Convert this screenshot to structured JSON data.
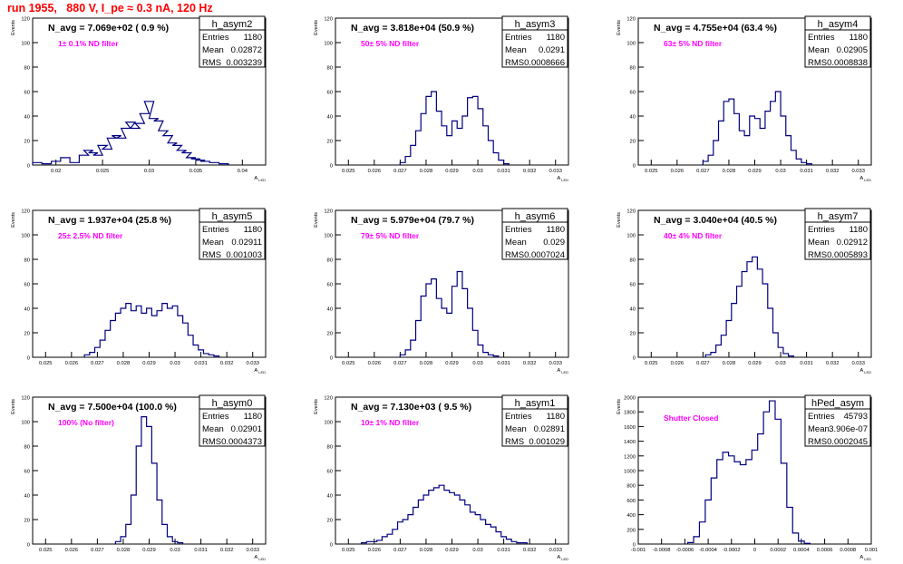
{
  "run_title": "run 1955,   880 V, I_pe ≈ 0.3 nA, 120 Hz",
  "colors": {
    "title": "#ff0000",
    "histogram": "#000080",
    "label": "#ff00ff",
    "frame": "#000000"
  },
  "chart_data": [
    {
      "type": "histogram",
      "hist_name": "h_asym2",
      "header": "N_avg = 7.069e+02 ( 0.9 %)",
      "label": "1± 0.1% ND filter",
      "stats": {
        "Entries": "1180",
        "Mean": "0.02872",
        "RMS": "0.003239"
      },
      "xlabel": "A_LED",
      "ylabel": "Events",
      "xlim": [
        0.0175,
        0.0425
      ],
      "ylim": [
        0,
        120
      ],
      "xticks": [
        0.02,
        0.025,
        0.03,
        0.035,
        0.04
      ],
      "xtick_labels": [
        "0.02",
        "0.025",
        "0.03",
        "0.035",
        "0.04"
      ],
      "yticks": [
        0,
        20,
        40,
        60,
        80,
        100,
        120
      ],
      "ytick_labels": [
        "0",
        "20",
        "40",
        "60",
        "80",
        "100",
        "120"
      ],
      "bin_centers": [
        0.018,
        0.019,
        0.02,
        0.021,
        0.022,
        0.023,
        0.0235,
        0.024,
        0.0245,
        0.025,
        0.0255,
        0.026,
        0.0265,
        0.027,
        0.0275,
        0.028,
        0.0285,
        0.029,
        0.0295,
        0.03,
        0.0305,
        0.031,
        0.0315,
        0.032,
        0.0325,
        0.033,
        0.0335,
        0.034,
        0.0345,
        0.035,
        0.0355,
        0.036,
        0.037,
        0.038
      ],
      "counts": [
        2,
        1,
        3,
        6,
        2,
        8,
        12,
        10,
        8,
        16,
        13,
        22,
        24,
        22,
        30,
        35,
        30,
        34,
        42,
        52,
        38,
        36,
        28,
        24,
        18,
        16,
        12,
        10,
        6,
        5,
        4,
        3,
        2,
        1
      ]
    },
    {
      "type": "histogram",
      "hist_name": "h_asym3",
      "header": "N_avg = 3.818e+04 (50.9 %)",
      "label": "50± 5% ND filter",
      "stats": {
        "Entries": "1180",
        "Mean": "0.0291",
        "RMS": "0.0008666"
      },
      "xlabel": "A_LED",
      "ylabel": "Events",
      "xlim": [
        0.0245,
        0.0335
      ],
      "ylim": [
        0,
        120
      ],
      "xticks": [
        0.025,
        0.026,
        0.027,
        0.028,
        0.029,
        0.03,
        0.031,
        0.032,
        0.033
      ],
      "xtick_labels": [
        "0.025",
        "0.026",
        "0.027",
        "0.028",
        "0.029",
        "0.03",
        "0.031",
        "0.032",
        "0.033"
      ],
      "yticks": [
        0,
        20,
        40,
        60,
        80,
        100,
        120
      ],
      "ytick_labels": [
        "0",
        "20",
        "40",
        "60",
        "80",
        "100",
        "120"
      ],
      "bin_centers": [
        0.0271,
        0.0273,
        0.0275,
        0.0277,
        0.0279,
        0.0281,
        0.0283,
        0.0285,
        0.0287,
        0.0289,
        0.0291,
        0.0293,
        0.0295,
        0.0297,
        0.0299,
        0.0301,
        0.0303,
        0.0305,
        0.0307,
        0.0309,
        0.0311
      ],
      "counts": [
        2,
        7,
        16,
        28,
        42,
        56,
        60,
        44,
        32,
        24,
        36,
        30,
        40,
        55,
        56,
        46,
        32,
        20,
        10,
        4,
        1
      ]
    },
    {
      "type": "histogram",
      "hist_name": "h_asym4",
      "header": "N_avg = 4.755e+04 (63.4 %)",
      "label": "63± 5% ND filter",
      "stats": {
        "Entries": "1180",
        "Mean": "0.02905",
        "RMS": "0.0008838"
      },
      "xlabel": "A_LED",
      "ylabel": "Events",
      "xlim": [
        0.0245,
        0.0335
      ],
      "ylim": [
        0,
        120
      ],
      "xticks": [
        0.025,
        0.026,
        0.027,
        0.028,
        0.029,
        0.03,
        0.031,
        0.032,
        0.033
      ],
      "xtick_labels": [
        "0.025",
        "0.026",
        "0.027",
        "0.028",
        "0.029",
        "0.03",
        "0.031",
        "0.032",
        "0.033"
      ],
      "yticks": [
        0,
        20,
        40,
        60,
        80,
        100,
        120
      ],
      "ytick_labels": [
        "0",
        "20",
        "40",
        "60",
        "80",
        "100",
        "120"
      ],
      "bin_centers": [
        0.0271,
        0.0273,
        0.0275,
        0.0277,
        0.0279,
        0.0281,
        0.0283,
        0.0285,
        0.0287,
        0.0289,
        0.0291,
        0.0293,
        0.0295,
        0.0297,
        0.0299,
        0.0301,
        0.0303,
        0.0305,
        0.0307,
        0.0309,
        0.0311
      ],
      "counts": [
        3,
        8,
        20,
        36,
        52,
        54,
        42,
        28,
        24,
        40,
        38,
        30,
        44,
        52,
        60,
        40,
        24,
        12,
        5,
        2,
        1
      ]
    },
    {
      "type": "histogram",
      "hist_name": "h_asym5",
      "header": "N_avg = 1.937e+04 (25.8 %)",
      "label": "25± 2.5% ND filter",
      "stats": {
        "Entries": "1180",
        "Mean": "0.02911",
        "RMS": "0.001003"
      },
      "xlabel": "A_LED",
      "ylabel": "Events",
      "xlim": [
        0.0245,
        0.0335
      ],
      "ylim": [
        0,
        120
      ],
      "xticks": [
        0.025,
        0.026,
        0.027,
        0.028,
        0.029,
        0.03,
        0.031,
        0.032,
        0.033
      ],
      "xtick_labels": [
        "0.025",
        "0.026",
        "0.027",
        "0.028",
        "0.029",
        "0.03",
        "0.031",
        "0.032",
        "0.033"
      ],
      "yticks": [
        0,
        20,
        40,
        60,
        80,
        100,
        120
      ],
      "ytick_labels": [
        "0",
        "20",
        "40",
        "60",
        "80",
        "100",
        "120"
      ],
      "bin_centers": [
        0.0266,
        0.0268,
        0.027,
        0.0272,
        0.0274,
        0.0276,
        0.0278,
        0.028,
        0.0282,
        0.0284,
        0.0286,
        0.0288,
        0.029,
        0.0292,
        0.0294,
        0.0296,
        0.0298,
        0.03,
        0.0302,
        0.0304,
        0.0306,
        0.0308,
        0.031,
        0.0312,
        0.0314,
        0.0316
      ],
      "counts": [
        2,
        4,
        8,
        14,
        22,
        30,
        36,
        40,
        44,
        38,
        42,
        36,
        40,
        34,
        38,
        44,
        40,
        42,
        34,
        28,
        18,
        10,
        6,
        3,
        2,
        1
      ]
    },
    {
      "type": "histogram",
      "hist_name": "h_asym6",
      "header": "N_avg = 5.979e+04 (79.7 %)",
      "label": "79± 5% ND filter",
      "stats": {
        "Entries": "1180",
        "Mean": "0.029",
        "RMS": "0.0007024"
      },
      "xlabel": "A_LED",
      "ylabel": "Events",
      "xlim": [
        0.0245,
        0.0335
      ],
      "ylim": [
        0,
        120
      ],
      "xticks": [
        0.025,
        0.026,
        0.027,
        0.028,
        0.029,
        0.03,
        0.031,
        0.032,
        0.033
      ],
      "xtick_labels": [
        "0.025",
        "0.026",
        "0.027",
        "0.028",
        "0.029",
        "0.03",
        "0.031",
        "0.032",
        "0.033"
      ],
      "yticks": [
        0,
        20,
        40,
        60,
        80,
        100,
        120
      ],
      "ytick_labels": [
        "0",
        "20",
        "40",
        "60",
        "80",
        "100",
        "120"
      ],
      "bin_centers": [
        0.0271,
        0.0273,
        0.0275,
        0.0277,
        0.0279,
        0.0281,
        0.0283,
        0.0285,
        0.0287,
        0.0289,
        0.0291,
        0.0293,
        0.0295,
        0.0297,
        0.0299,
        0.0301,
        0.0303,
        0.0305,
        0.0307
      ],
      "counts": [
        2,
        6,
        14,
        30,
        50,
        60,
        64,
        48,
        40,
        36,
        58,
        70,
        56,
        40,
        22,
        10,
        4,
        2,
        1
      ]
    },
    {
      "type": "histogram",
      "hist_name": "h_asym7",
      "header": "N_avg = 3.040e+04 (40.5 %)",
      "label": "40± 4% ND filter",
      "stats": {
        "Entries": "1180",
        "Mean": "0.02912",
        "RMS": "0.0005893"
      },
      "xlabel": "A_LED",
      "ylabel": "Events",
      "xlim": [
        0.0245,
        0.0335
      ],
      "ylim": [
        0,
        120
      ],
      "xticks": [
        0.025,
        0.026,
        0.027,
        0.028,
        0.029,
        0.03,
        0.031,
        0.032,
        0.033
      ],
      "xtick_labels": [
        "0.025",
        "0.026",
        "0.027",
        "0.028",
        "0.029",
        "0.03",
        "0.031",
        "0.032",
        "0.033"
      ],
      "yticks": [
        0,
        20,
        40,
        60,
        80,
        100,
        120
      ],
      "ytick_labels": [
        "0",
        "20",
        "40",
        "60",
        "80",
        "100",
        "120"
      ],
      "bin_centers": [
        0.0272,
        0.0274,
        0.0276,
        0.0278,
        0.028,
        0.0282,
        0.0284,
        0.0286,
        0.0288,
        0.029,
        0.0292,
        0.0294,
        0.0296,
        0.0298,
        0.03,
        0.0302,
        0.0304
      ],
      "counts": [
        2,
        4,
        10,
        18,
        30,
        44,
        58,
        70,
        78,
        82,
        72,
        60,
        40,
        20,
        8,
        3,
        1
      ]
    },
    {
      "type": "histogram",
      "hist_name": "h_asym0",
      "header": "N_avg = 7.500e+04 (100.0 %)",
      "label": "100% (No filter)",
      "stats": {
        "Entries": "1180",
        "Mean": "0.02901",
        "RMS": "0.0004373"
      },
      "xlabel": "A_LED",
      "ylabel": "Events",
      "xlim": [
        0.0245,
        0.0335
      ],
      "ylim": [
        0,
        120
      ],
      "xticks": [
        0.025,
        0.026,
        0.027,
        0.028,
        0.029,
        0.03,
        0.031,
        0.032,
        0.033
      ],
      "xtick_labels": [
        "0.025",
        "0.026",
        "0.027",
        "0.028",
        "0.029",
        "0.03",
        "0.031",
        "0.032",
        "0.033"
      ],
      "yticks": [
        0,
        20,
        40,
        60,
        80,
        100,
        120
      ],
      "ytick_labels": [
        "0",
        "20",
        "40",
        "60",
        "80",
        "100",
        "120"
      ],
      "bin_centers": [
        0.0278,
        0.028,
        0.0282,
        0.0284,
        0.0286,
        0.0288,
        0.029,
        0.0292,
        0.0294,
        0.0296,
        0.0298,
        0.03,
        0.0302
      ],
      "counts": [
        2,
        6,
        16,
        40,
        80,
        104,
        96,
        66,
        36,
        16,
        6,
        2,
        1
      ]
    },
    {
      "type": "histogram",
      "hist_name": "h_asym1",
      "header": "N_avg = 7.130e+03 ( 9.5 %)",
      "label": "10± 1% ND filter",
      "stats": {
        "Entries": "1180",
        "Mean": "0.02891",
        "RMS": "0.001029"
      },
      "xlabel": "A_LED",
      "ylabel": "Events",
      "xlim": [
        0.0245,
        0.0335
      ],
      "ylim": [
        0,
        120
      ],
      "xticks": [
        0.025,
        0.026,
        0.027,
        0.028,
        0.029,
        0.03,
        0.031,
        0.032,
        0.033
      ],
      "xtick_labels": [
        "0.025",
        "0.026",
        "0.027",
        "0.028",
        "0.029",
        "0.03",
        "0.031",
        "0.032",
        "0.033"
      ],
      "yticks": [
        0,
        20,
        40,
        60,
        80,
        100,
        120
      ],
      "ytick_labels": [
        "0",
        "20",
        "40",
        "60",
        "80",
        "100",
        "120"
      ],
      "bin_centers": [
        0.0256,
        0.0258,
        0.026,
        0.0262,
        0.0264,
        0.0266,
        0.0268,
        0.027,
        0.0272,
        0.0274,
        0.0276,
        0.0278,
        0.028,
        0.0282,
        0.0284,
        0.0286,
        0.0288,
        0.029,
        0.0292,
        0.0294,
        0.0296,
        0.0298,
        0.03,
        0.0302,
        0.0304,
        0.0306,
        0.0308,
        0.031,
        0.0312,
        0.0314,
        0.0316,
        0.0318
      ],
      "counts": [
        1,
        2,
        2,
        3,
        6,
        8,
        12,
        18,
        20,
        24,
        30,
        36,
        40,
        44,
        46,
        48,
        44,
        42,
        40,
        36,
        32,
        26,
        24,
        20,
        16,
        14,
        10,
        6,
        4,
        2,
        1,
        1
      ]
    },
    {
      "type": "histogram",
      "hist_name": "hPed_asym",
      "header": "",
      "label": "Shutter Closed",
      "stats": {
        "Entries": "45793",
        "Mean": "3.906e-07",
        "RMS": "0.0002045"
      },
      "xlabel": "A_LED",
      "ylabel": "Events",
      "xlim": [
        -0.001,
        0.001
      ],
      "ylim": [
        0,
        2000
      ],
      "xticks": [
        -0.001,
        -0.0008,
        -0.0006,
        -0.0004,
        -0.0002,
        0,
        0.0002,
        0.0004,
        0.0006,
        0.0008,
        0.001
      ],
      "xtick_labels": [
        "-0.001",
        "-0.0008",
        "-0.0006",
        "-0.0004",
        "-0.0002",
        "0",
        "0.0002",
        "0.0004",
        "0.0006",
        "0.0008",
        "0.001"
      ],
      "yticks": [
        0,
        200,
        400,
        600,
        800,
        1000,
        1200,
        1400,
        1600,
        1800,
        2000
      ],
      "ytick_labels": [
        "0",
        "200",
        "400",
        "600",
        "800",
        "1000",
        "1200",
        "1400",
        "1600",
        "1800",
        "2000"
      ],
      "bin_centers": [
        -0.00055,
        -0.0005,
        -0.00045,
        -0.0004,
        -0.00035,
        -0.0003,
        -0.00025,
        -0.0002,
        -0.00015,
        -0.0001,
        -5e-05,
        0,
        5e-05,
        0.0001,
        0.00015,
        0.0002,
        0.00025,
        0.0003,
        0.00035,
        0.0004,
        0.00045
      ],
      "counts": [
        20,
        100,
        300,
        600,
        900,
        1150,
        1250,
        1200,
        1120,
        1080,
        1150,
        1280,
        1500,
        1800,
        1950,
        1700,
        1100,
        500,
        150,
        40,
        10
      ]
    }
  ]
}
